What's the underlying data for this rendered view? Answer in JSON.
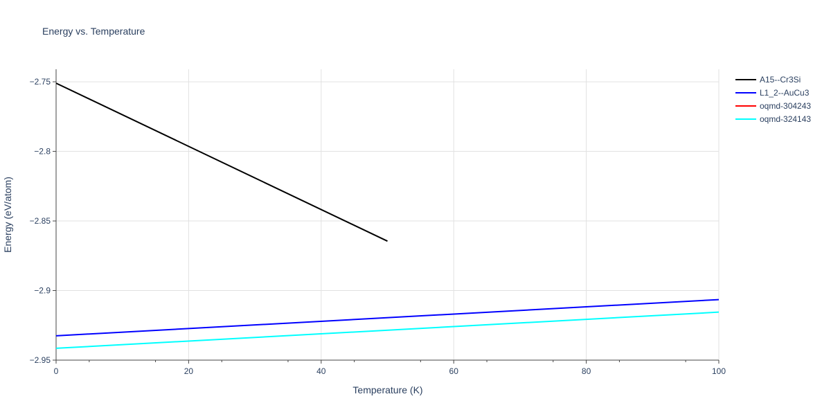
{
  "chart_data": {
    "type": "line",
    "title": "Energy vs. Temperature",
    "xlabel": "Temperature (K)",
    "ylabel": "Energy (eV/atom)",
    "xlim": [
      0,
      100
    ],
    "ylim": [
      -2.95,
      -2.741
    ],
    "xticks": [
      0,
      20,
      40,
      60,
      80,
      100
    ],
    "xtick_labels": [
      "0",
      "20",
      "40",
      "60",
      "80",
      "100"
    ],
    "yticks": [
      -2.75,
      -2.8,
      -2.85,
      -2.9,
      -2.95
    ],
    "ytick_labels": [
      "−2.75",
      "−2.8",
      "−2.85",
      "−2.9",
      "−2.95"
    ],
    "grid": true,
    "legend_position": "top-right",
    "series": [
      {
        "name": "A15--Cr3Si",
        "color": "#000000",
        "x": [
          0,
          50
        ],
        "y": [
          -2.751,
          -2.8645
        ]
      },
      {
        "name": "L1_2--AuCu3",
        "color": "#0000ff",
        "x": [
          0,
          100
        ],
        "y": [
          -2.9325,
          -2.9065
        ]
      },
      {
        "name": "oqmd-304243",
        "color": "#ff0000",
        "x": [],
        "y": []
      },
      {
        "name": "oqmd-324143",
        "color": "#00ffff",
        "x": [
          0,
          100
        ],
        "y": [
          -2.9415,
          -2.9155
        ]
      }
    ]
  }
}
